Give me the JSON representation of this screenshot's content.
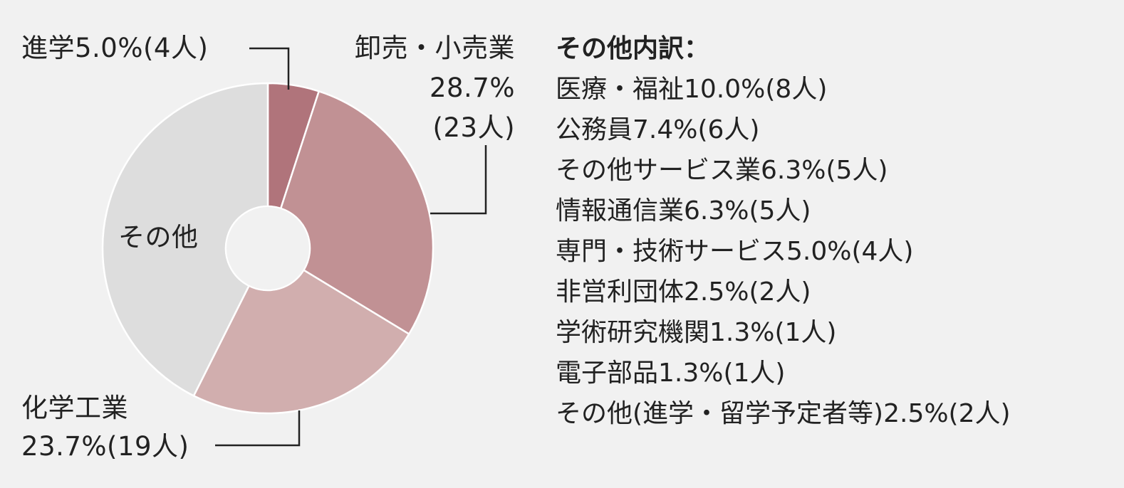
{
  "chart_data": {
    "type": "pie",
    "slices": [
      {
        "label": "進学",
        "percent": 5.0,
        "count_text": "4人",
        "color": "#b0747b"
      },
      {
        "label": "卸売・小売業",
        "percent": 28.7,
        "count_text": "23人",
        "color": "#c19194"
      },
      {
        "label": "化学工業",
        "percent": 23.7,
        "count_text": "19人",
        "color": "#d1aeae"
      },
      {
        "label": "その他",
        "percent": 42.6,
        "color": "#dddddd"
      }
    ]
  },
  "labels": {
    "shingaku": "進学5.0%(4人)",
    "oroshi_name": "卸売・小売業",
    "oroshi_pct": "28.7%",
    "oroshi_count": "(23人)",
    "kagaku_name": "化学工業",
    "kagaku_line": "23.7%(19人)",
    "sonota": "その他"
  },
  "breakdown": {
    "title": "その他内訳：",
    "items": [
      "医療・福祉10.0%(8人)",
      "公務員7.4%(6人)",
      "その他サービス業6.3%(5人)",
      "情報通信業6.3%(5人)",
      "専門・技術サービス5.0%(4人)",
      "非営利団体2.5%(2人)",
      "学術研究機関1.3%(1人)",
      "電子部品1.3%(1人)",
      "その他(進学・留学予定者等)2.5%(2人)"
    ]
  }
}
